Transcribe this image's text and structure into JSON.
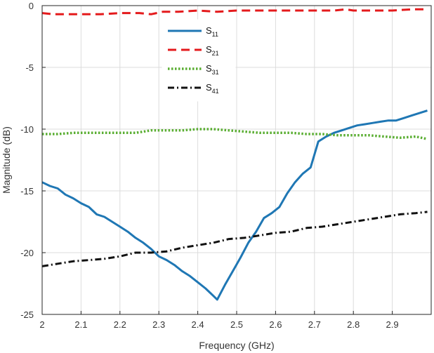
{
  "chart_data": {
    "type": "line",
    "title": "",
    "xlabel": "Frequency (GHz)",
    "ylabel": "Magnitude (dB)",
    "xlim": [
      2.0,
      3.0
    ],
    "ylim": [
      -25,
      0
    ],
    "grid": true,
    "legend_position": "top-center",
    "x_ticks": [
      2.0,
      2.1,
      2.2,
      2.3,
      2.4,
      2.5,
      2.6,
      2.7,
      2.8,
      2.9
    ],
    "x_tick_labels": [
      "2",
      "2.1",
      "2.2",
      "2.3",
      "2.4",
      "2.5",
      "2.6",
      "2.7",
      "2.8",
      "2.9"
    ],
    "y_ticks": [
      0,
      -5,
      -10,
      -15,
      -20,
      -25
    ],
    "y_tick_labels": [
      "0",
      "-5",
      "-10",
      "-15",
      "-20",
      "-25"
    ],
    "series": [
      {
        "name": "S11",
        "base": "S",
        "sub": "11",
        "color": "#1f77b4",
        "dash": "solid",
        "x": [
          2.0,
          2.02,
          2.04,
          2.06,
          2.08,
          2.1,
          2.12,
          2.14,
          2.16,
          2.18,
          2.2,
          2.22,
          2.24,
          2.26,
          2.28,
          2.3,
          2.32,
          2.34,
          2.36,
          2.38,
          2.4,
          2.42,
          2.44,
          2.45,
          2.47,
          2.49,
          2.51,
          2.53,
          2.55,
          2.57,
          2.59,
          2.61,
          2.63,
          2.65,
          2.67,
          2.69,
          2.71,
          2.73,
          2.75,
          2.77,
          2.79,
          2.81,
          2.83,
          2.85,
          2.87,
          2.89,
          2.91,
          2.93,
          2.95,
          2.97,
          2.99
        ],
        "y": [
          -14.3,
          -14.6,
          -14.8,
          -15.3,
          -15.6,
          -16.0,
          -16.3,
          -16.9,
          -17.1,
          -17.5,
          -17.9,
          -18.3,
          -18.8,
          -19.2,
          -19.7,
          -20.3,
          -20.6,
          -21.0,
          -21.5,
          -21.9,
          -22.4,
          -22.9,
          -23.5,
          -23.8,
          -22.6,
          -21.5,
          -20.4,
          -19.2,
          -18.3,
          -17.2,
          -16.8,
          -16.3,
          -15.2,
          -14.3,
          -13.6,
          -13.1,
          -11.0,
          -10.6,
          -10.3,
          -10.1,
          -9.9,
          -9.7,
          -9.6,
          -9.5,
          -9.4,
          -9.3,
          -9.3,
          -9.1,
          -8.9,
          -8.7,
          -8.5
        ]
      },
      {
        "name": "S21",
        "base": "S",
        "sub": "21",
        "color": "#e41a1c",
        "dash": "dashed",
        "x": [
          2.0,
          2.03,
          2.06,
          2.1,
          2.15,
          2.2,
          2.25,
          2.28,
          2.31,
          2.35,
          2.4,
          2.45,
          2.5,
          2.55,
          2.6,
          2.65,
          2.7,
          2.75,
          2.78,
          2.8,
          2.85,
          2.9,
          2.95,
          2.99
        ],
        "y": [
          -0.6,
          -0.7,
          -0.7,
          -0.7,
          -0.7,
          -0.6,
          -0.6,
          -0.7,
          -0.5,
          -0.5,
          -0.4,
          -0.5,
          -0.4,
          -0.4,
          -0.4,
          -0.4,
          -0.4,
          -0.4,
          -0.3,
          -0.4,
          -0.4,
          -0.4,
          -0.3,
          -0.3
        ]
      },
      {
        "name": "S31",
        "base": "S",
        "sub": "31",
        "color": "#5aae32",
        "dash": "dotted",
        "x": [
          2.0,
          2.04,
          2.08,
          2.12,
          2.16,
          2.2,
          2.24,
          2.28,
          2.32,
          2.36,
          2.4,
          2.44,
          2.48,
          2.52,
          2.56,
          2.6,
          2.64,
          2.68,
          2.72,
          2.76,
          2.8,
          2.84,
          2.88,
          2.92,
          2.96,
          2.99
        ],
        "y": [
          -10.4,
          -10.4,
          -10.3,
          -10.3,
          -10.3,
          -10.3,
          -10.3,
          -10.1,
          -10.1,
          -10.1,
          -10.0,
          -10.0,
          -10.1,
          -10.2,
          -10.3,
          -10.3,
          -10.3,
          -10.4,
          -10.4,
          -10.5,
          -10.5,
          -10.5,
          -10.6,
          -10.7,
          -10.6,
          -10.8
        ]
      },
      {
        "name": "S41",
        "base": "S",
        "sub": "41",
        "color": "#111111",
        "dash": "dashdot",
        "x": [
          2.0,
          2.04,
          2.08,
          2.12,
          2.16,
          2.2,
          2.24,
          2.28,
          2.32,
          2.36,
          2.4,
          2.44,
          2.48,
          2.52,
          2.56,
          2.6,
          2.64,
          2.68,
          2.72,
          2.76,
          2.8,
          2.84,
          2.88,
          2.92,
          2.96,
          2.99
        ],
        "y": [
          -21.1,
          -20.9,
          -20.7,
          -20.6,
          -20.5,
          -20.3,
          -20.0,
          -20.0,
          -19.9,
          -19.6,
          -19.4,
          -19.2,
          -18.9,
          -18.8,
          -18.6,
          -18.4,
          -18.3,
          -18.0,
          -17.9,
          -17.7,
          -17.5,
          -17.3,
          -17.1,
          -16.9,
          -16.8,
          -16.7
        ]
      }
    ]
  }
}
